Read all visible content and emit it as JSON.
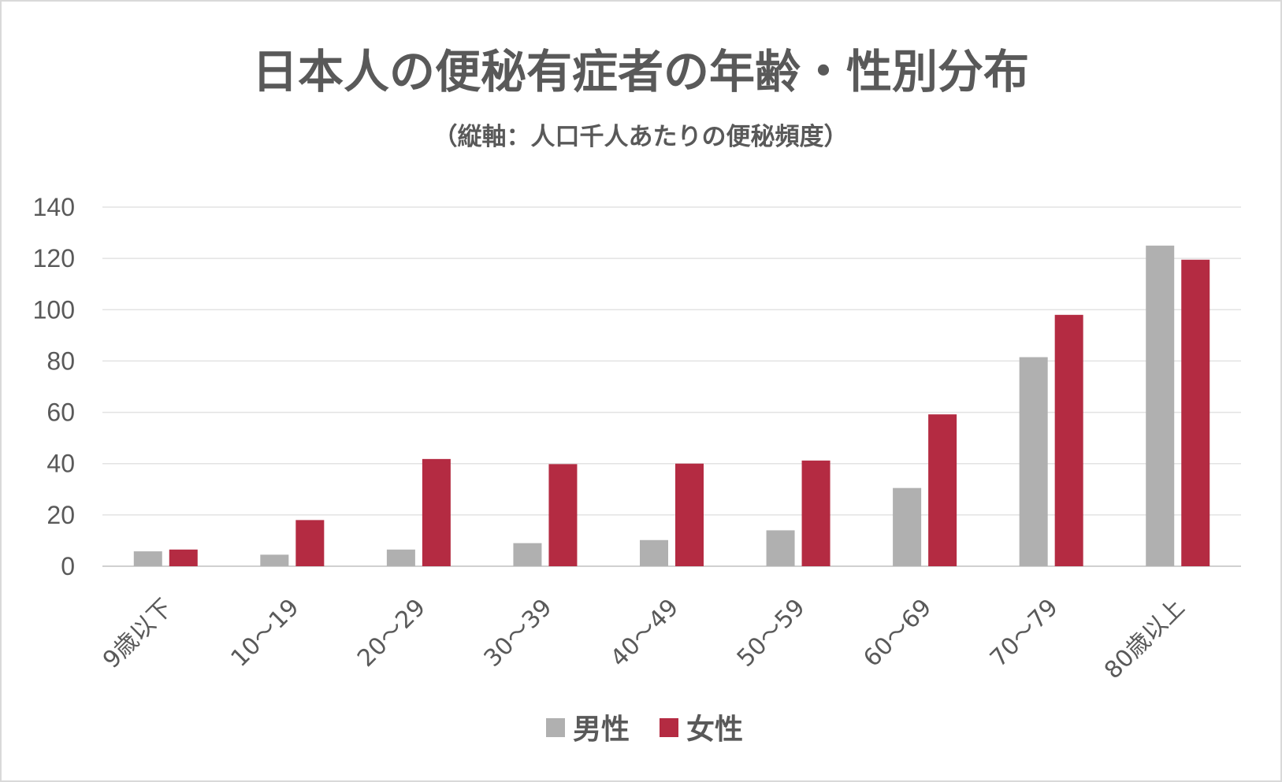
{
  "chart_data": {
    "type": "bar",
    "title": "日本人の便秘有症者の年齢・性別分布",
    "subtitle": "（縦軸：人口千人あたりの便秘頻度）",
    "categories": [
      "9歳以下",
      "10〜19",
      "20〜29",
      "30〜39",
      "40〜49",
      "50〜59",
      "60〜69",
      "70〜79",
      "80歳以上"
    ],
    "series": [
      {
        "name": "男性",
        "color": "#b0b0b0",
        "values": [
          5.8,
          4.5,
          6.5,
          9.0,
          10.2,
          14.0,
          30.5,
          81.5,
          125.0
        ]
      },
      {
        "name": "女性",
        "color": "#b42b42",
        "values": [
          6.5,
          18.0,
          41.8,
          39.8,
          40.0,
          41.2,
          59.2,
          98.0,
          119.5
        ]
      }
    ],
    "ylim": [
      0,
      140
    ],
    "yticks": [
      0,
      20,
      40,
      60,
      80,
      100,
      120,
      140
    ],
    "ytick_labels": [
      "0",
      "20",
      "40",
      "60",
      "80",
      "100",
      "120",
      "140"
    ],
    "grid": true,
    "legend_position": "bottom"
  }
}
